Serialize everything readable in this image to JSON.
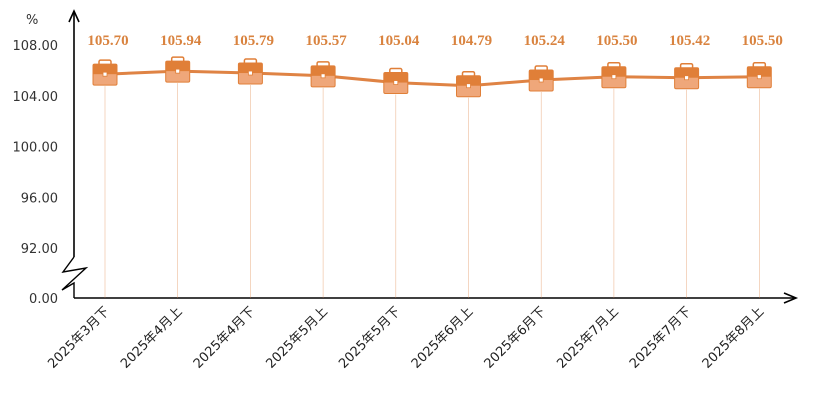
{
  "chart_data": {
    "type": "line",
    "unit": "%",
    "categories": [
      "2025年3月下",
      "2025年4月上",
      "2025年4月下",
      "2025年5月上",
      "2025年5月下",
      "2025年6月上",
      "2025年6月下",
      "2025年7月上",
      "2025年7月下",
      "2025年8月上"
    ],
    "series": [
      {
        "values": [
          105.7,
          105.94,
          105.79,
          105.57,
          105.04,
          104.79,
          105.24,
          105.5,
          105.42,
          105.5
        ]
      }
    ],
    "data_labels": [
      "105.70",
      "105.94",
      "105.79",
      "105.57",
      "105.04",
      "104.79",
      "105.24",
      "105.50",
      "105.42",
      "105.50"
    ],
    "y_ticks": [
      "0.00",
      "92.00",
      "96.00",
      "100.00",
      "104.00",
      "108.00"
    ],
    "y_tick_values": [
      0,
      92,
      96,
      100,
      104,
      108
    ],
    "ylim": [
      92,
      108
    ],
    "axis_break": true,
    "grid": false,
    "legend": "none",
    "marker_icon": "briefcase-icon",
    "colors": {
      "line": "#df8344",
      "label": "#d9833f",
      "marker": "#e07f38",
      "marker_light": "#efa77a",
      "axis": "#000000"
    }
  }
}
